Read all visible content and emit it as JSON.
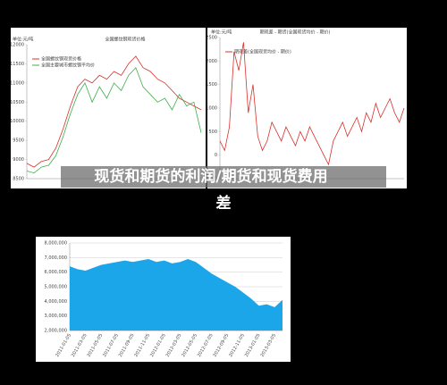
{
  "caption": "现货和期货的利润/期货和现货费用差",
  "chart_data": [
    {
      "type": "line",
      "title": "全国螺纹钢现货价格",
      "unit": "单位:元/吨",
      "categories": [
        null,
        null,
        null,
        null,
        null,
        null,
        null,
        null,
        null,
        null,
        null,
        null,
        null,
        null,
        null,
        null,
        null,
        null,
        null,
        null,
        null,
        null,
        null,
        null,
        null
      ],
      "series": [
        {
          "name": "全国螺纹钢现货价格",
          "color": "#d9302a",
          "values": [
            8900,
            8800,
            8950,
            9000,
            9300,
            9800,
            10400,
            10900,
            11100,
            11000,
            11200,
            11100,
            11300,
            11200,
            11500,
            11700,
            11400,
            11300,
            11100,
            11000,
            10800,
            10600,
            10500,
            10400,
            10300
          ]
        },
        {
          "name": "全国主要城市螺纹钢平均价",
          "color": "#3fae49",
          "values": [
            8700,
            8650,
            8800,
            8850,
            9100,
            9600,
            10200,
            10700,
            11000,
            10500,
            10900,
            10600,
            11000,
            10800,
            11200,
            11400,
            10900,
            10700,
            10500,
            10600,
            10300,
            10700,
            10400,
            10500,
            9700
          ]
        }
      ],
      "ylim": [
        8500,
        12000
      ],
      "yticks": [
        8500,
        9000,
        9500,
        10000,
        10500,
        11000,
        11500,
        12000
      ]
    },
    {
      "type": "line",
      "title": "期现差 - 期货(全国现货均价 - 期价)",
      "unit": "单位:元/吨",
      "categories": [
        null,
        null,
        null,
        null,
        null,
        null,
        null,
        null,
        null,
        null,
        null,
        null,
        null,
        null,
        null,
        null,
        null,
        null,
        null,
        null,
        null,
        null,
        null,
        null,
        null,
        null,
        null,
        null,
        null,
        null,
        null,
        null,
        null,
        null,
        null,
        null,
        null,
        null,
        null,
        null
      ],
      "series": [
        {
          "name": "期现差(全国现货均价 - 期价)",
          "color": "#d9302a",
          "values": [
            300,
            100,
            600,
            2200,
            1800,
            2400,
            900,
            1500,
            400,
            100,
            300,
            700,
            500,
            300,
            600,
            400,
            200,
            500,
            300,
            600,
            400,
            200,
            0,
            -200,
            300,
            500,
            700,
            400,
            600,
            800,
            500,
            900,
            700,
            1100,
            800,
            1000,
            1200,
            900,
            700,
            1000
          ]
        }
      ],
      "ylim": [
        -500,
        2500
      ],
      "yticks": [
        -500,
        0,
        500,
        1000,
        1500,
        2000,
        2500
      ]
    },
    {
      "type": "area",
      "categories": [
        "2011-01-05",
        null,
        "2011-03-05",
        null,
        "2011-05-05",
        null,
        "2011-07-05",
        null,
        "2011-09-05",
        null,
        "2011-11-05",
        null,
        "2012-01-05",
        null,
        "2012-03-05",
        null,
        "2012-05-05",
        null,
        "2012-07-05",
        null,
        "2012-09-05",
        null,
        "2012-11-05",
        null,
        "2013-01-05",
        null,
        "2013-03-05",
        null
      ],
      "series": [
        {
          "color": "#1aa6e8",
          "values": [
            6400000,
            6200000,
            6100000,
            6300000,
            6500000,
            6600000,
            6700000,
            6800000,
            6700000,
            6800000,
            6900000,
            6700000,
            6800000,
            6600000,
            6700000,
            6900000,
            6700000,
            6300000,
            5900000,
            5600000,
            5300000,
            5000000,
            4600000,
            4200000,
            3700000,
            3800000,
            3600000,
            4100000
          ]
        }
      ],
      "ylim": [
        2000000,
        8000000
      ],
      "yticks": [
        {
          "value": 2000000,
          "label": "2,000,000"
        },
        {
          "value": 3000000,
          "label": "3,000,000"
        },
        {
          "value": 4000000,
          "label": "4,000,000"
        },
        {
          "value": 5000000,
          "label": "5,000,000"
        },
        {
          "value": 6000000,
          "label": "6,000,000"
        },
        {
          "value": 7000000,
          "label": "7,000,000"
        },
        {
          "value": 8000000,
          "label": "8,000,000"
        }
      ],
      "grid": true
    }
  ]
}
